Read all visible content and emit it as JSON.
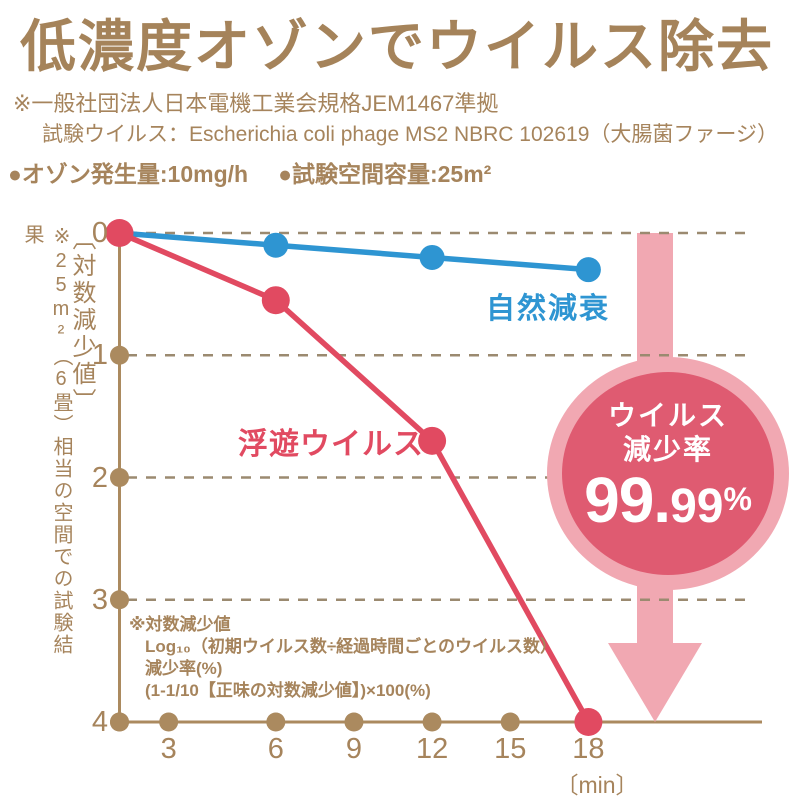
{
  "title": "低濃度オゾンでウイルス除去",
  "notes": [
    "※一般社団法人日本電機工業会規格JEM1467準拠",
    "試験ウイルス：Escherichia coli phage MS2 NBRC 102619（大腸菌ファージ）"
  ],
  "specs": [
    "●オゾン発生量:10mg/h",
    "●試験空間容量:25m²"
  ],
  "chart_data": {
    "type": "line",
    "x": [
      0,
      6,
      12,
      18
    ],
    "x_ticks": [
      3,
      6,
      9,
      12,
      15,
      18
    ],
    "x_range": [
      0,
      18
    ],
    "xlabel": "〔min〕",
    "ylabel": "〔対数減少値〕",
    "y_ticks": [
      0,
      1,
      2,
      3,
      4
    ],
    "y_range": [
      0,
      4
    ],
    "y_inverted": true,
    "grid": "horizontal-dashed",
    "side_note": "※25m²（6畳）相当の空間での試験結果",
    "series": [
      {
        "name": "自然減衰",
        "color": "#2e95d2",
        "values": [
          0,
          0.1,
          0.2,
          0.3
        ]
      },
      {
        "name": "浮遊ウイルス",
        "color": "#e14a61",
        "values": [
          0,
          0.55,
          1.7,
          4.0
        ]
      }
    ]
  },
  "badge": {
    "line1": "ウイルス",
    "line2": "減少率",
    "value_main": "99.",
    "value_sub": "99",
    "value_unit": "%"
  },
  "footnote": {
    "lines": [
      "※対数減少値",
      "Log₁₀（初期ウイルス数÷経過時間ごとのウイルス数）",
      "減少率(%)",
      "(1-1/10【正味の対数減少値】)×100(%)"
    ]
  },
  "colors": {
    "title_brown": "#a5835a",
    "text_brown": "#a6845c",
    "axis_brown": "#ab8a5f",
    "grid_brown": "#9b8a70",
    "blue": "#2e95d2",
    "red": "#e14a61",
    "pink_light": "#f1a8b2",
    "pink_dark": "#df5b71",
    "badge_text": "#ffffff"
  }
}
